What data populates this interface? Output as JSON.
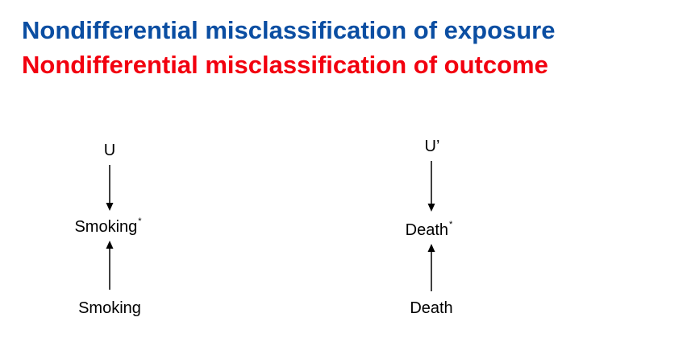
{
  "titles": {
    "exposure": "Nondifferential misclassification of exposure",
    "outcome": "Nondifferential misclassification of outcome"
  },
  "colors": {
    "exposure_title": "#0b4ea2",
    "outcome_title": "#f2000f",
    "diagram_ink": "#000000"
  },
  "diagrams": [
    {
      "top_node": "U",
      "middle_node": "Smoking",
      "middle_marker": "*",
      "bottom_node": "Smoking"
    },
    {
      "top_node": "U’",
      "middle_node": "Death",
      "middle_marker": "*",
      "bottom_node": "Death"
    }
  ]
}
